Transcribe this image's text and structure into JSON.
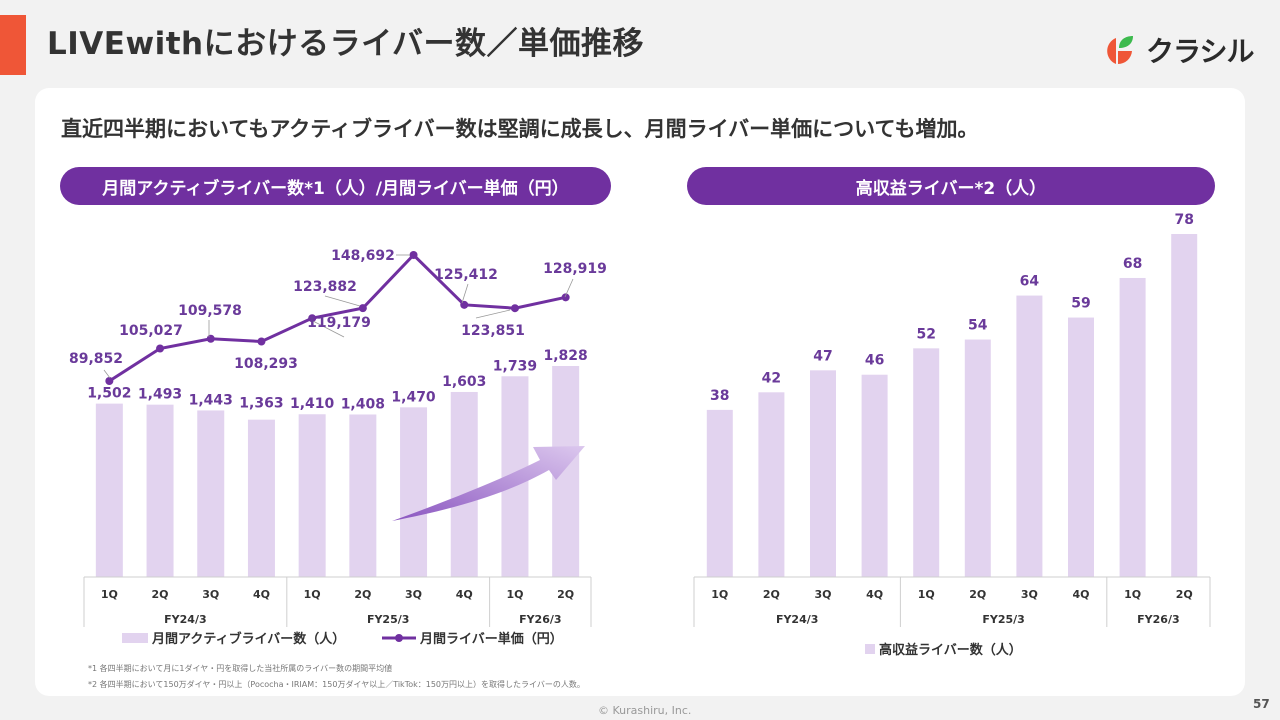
{
  "header": {
    "title": "LIVEwithにおけるライバー数／単価推移",
    "logo_text": "クラシル"
  },
  "subtitle": "直近四半期においてもアクティブライバー数は堅調に成長し、月間ライバー単価についても増加。",
  "colors": {
    "accent": "#ef5637",
    "purple": "#7030a0",
    "bar": "#e2d3ef",
    "label": "#6a3a9a"
  },
  "left_panel": {
    "pill_label": "月間アクティブライバー数*1（人）/月間ライバー単価（円）",
    "legend": {
      "bar": "月間アクティブライバー数（人）",
      "line": "月間ライバー単価（円）"
    }
  },
  "right_panel": {
    "pill_label": "高収益ライバー*2（人）",
    "legend": {
      "bar": "高収益ライバー数（人）"
    }
  },
  "chart_data": [
    {
      "type": "bar+line",
      "title": "月間アクティブライバー数*1（人）/月間ライバー単価（円）",
      "categories": [
        "1Q",
        "2Q",
        "3Q",
        "4Q",
        "1Q",
        "2Q",
        "3Q",
        "4Q",
        "1Q",
        "2Q"
      ],
      "groups": [
        {
          "label": "FY24/3",
          "count": 4
        },
        {
          "label": "FY25/3",
          "count": 4
        },
        {
          "label": "FY26/3",
          "count": 2
        }
      ],
      "series": [
        {
          "name": "月間アクティブライバー数（人）",
          "kind": "bar",
          "values": [
            1502,
            1493,
            1443,
            1363,
            1410,
            1408,
            1470,
            1603,
            1739,
            1828
          ],
          "labels": [
            "1,502",
            "1,493",
            "1,443",
            "1,363",
            "1,410",
            "1,408",
            "1,470",
            "1,603",
            "1,739",
            "1,828"
          ]
        },
        {
          "name": "月間ライバー単価（円）",
          "kind": "line",
          "values": [
            89852,
            105027,
            109578,
            108293,
            119179,
            123882,
            148692,
            125412,
            123851,
            128919
          ],
          "labels": [
            "89,852",
            "105,027",
            "109,578",
            "108,293",
            "119,179",
            "123,882",
            "148,692",
            "125,412",
            "123,851",
            "128,919"
          ]
        }
      ],
      "annotation": "upward growth arrow",
      "grid": false,
      "legend_position": "bottom"
    },
    {
      "type": "bar",
      "title": "高収益ライバー*2（人）",
      "categories": [
        "1Q",
        "2Q",
        "3Q",
        "4Q",
        "1Q",
        "2Q",
        "3Q",
        "4Q",
        "1Q",
        "2Q"
      ],
      "groups": [
        {
          "label": "FY24/3",
          "count": 4
        },
        {
          "label": "FY25/3",
          "count": 4
        },
        {
          "label": "FY26/3",
          "count": 2
        }
      ],
      "series": [
        {
          "name": "高収益ライバー数（人）",
          "values": [
            38,
            42,
            47,
            46,
            52,
            54,
            64,
            59,
            68,
            78
          ],
          "labels": [
            "38",
            "42",
            "47",
            "46",
            "52",
            "54",
            "64",
            "59",
            "68",
            "78"
          ]
        }
      ],
      "grid": false,
      "legend_position": "bottom"
    }
  ],
  "footnotes": [
    "*1 各四半期において月に1ダイヤ・円を取得した当社所属のライバー数の期間平均値",
    "*2 各四半期において150万ダイヤ・円以上（Pococha・IRIAM：150万ダイヤ以上／TikTok：150万円以上）を取得したライバーの人数。"
  ],
  "footer": {
    "copyright": "© Kurashiru, Inc.",
    "page_number": "57"
  }
}
